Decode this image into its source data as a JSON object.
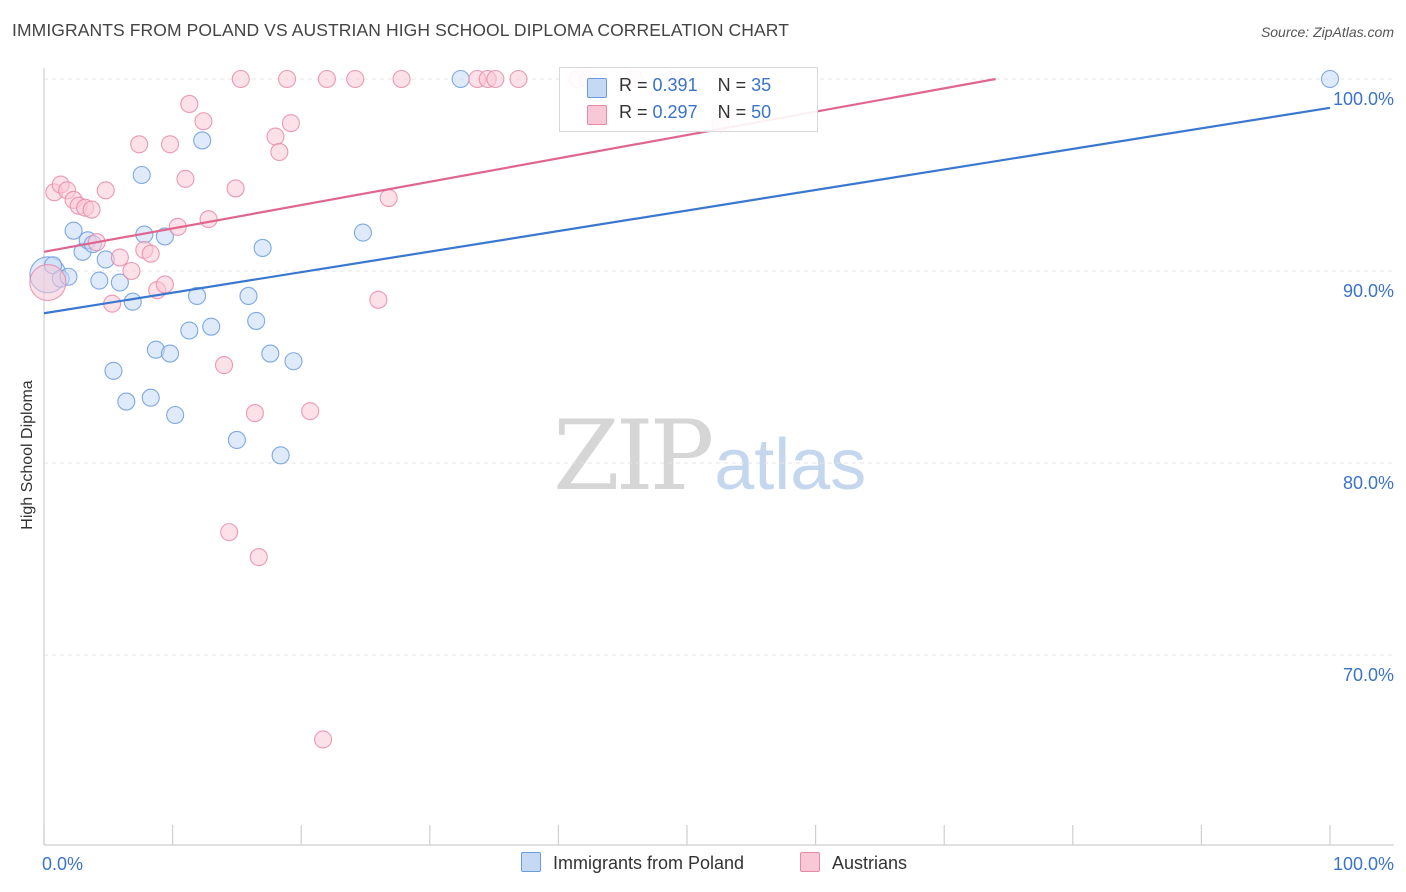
{
  "header": {
    "title": "IMMIGRANTS FROM POLAND VS AUSTRIAN HIGH SCHOOL DIPLOMA CORRELATION CHART",
    "source": "Source: ZipAtlas.com"
  },
  "watermark": {
    "zip": "ZIP",
    "atlas": "atlas"
  },
  "legend": {
    "r_label": "R =",
    "n_label": "N =",
    "rows": [
      {
        "r": "0.391",
        "n": "35"
      },
      {
        "r": "0.297",
        "n": "50"
      }
    ]
  },
  "colors": {
    "poland_fill": "#c5d9f5",
    "poland_stroke": "#6a9be0",
    "poland_line": "#3a78cf",
    "austrian_fill": "#f9c8d6",
    "austrian_stroke": "#e889a8",
    "austrian_line": "#e0668f",
    "tick_label": "#3a73c8",
    "grid": "#e4e4e4"
  },
  "chart_data": {
    "type": "scatter",
    "title": "IMMIGRANTS FROM POLAND VS AUSTRIAN HIGH SCHOOL DIPLOMA CORRELATION CHART",
    "xlabel": "",
    "ylabel": "High School Diploma",
    "xlim": [
      0,
      100
    ],
    "ylim": [
      60.5,
      100.5
    ],
    "x_tick_labels": [
      "0.0%",
      "100.0%"
    ],
    "y_ticks": [
      70,
      80,
      90,
      100
    ],
    "y_tick_labels": [
      "70.0%",
      "80.0%",
      "90.0%",
      "100.0%"
    ],
    "grid": true,
    "legend_position": "bottom",
    "series": [
      {
        "name": "Immigrants from Poland",
        "r": 0.391,
        "n": 35,
        "trend": {
          "x": [
            0,
            100
          ],
          "y": [
            87.8,
            98.5
          ]
        },
        "points": [
          {
            "x": 0.3,
            "y": 89.8,
            "s": "l"
          },
          {
            "x": 0.7,
            "y": 90.3
          },
          {
            "x": 1.3,
            "y": 89.6
          },
          {
            "x": 1.9,
            "y": 89.7
          },
          {
            "x": 2.3,
            "y": 92.1
          },
          {
            "x": 3.0,
            "y": 91.0
          },
          {
            "x": 3.4,
            "y": 91.6
          },
          {
            "x": 3.8,
            "y": 91.4
          },
          {
            "x": 4.3,
            "y": 89.5
          },
          {
            "x": 4.8,
            "y": 90.6
          },
          {
            "x": 5.4,
            "y": 84.8
          },
          {
            "x": 5.9,
            "y": 89.4
          },
          {
            "x": 6.4,
            "y": 83.2
          },
          {
            "x": 6.9,
            "y": 88.4
          },
          {
            "x": 7.6,
            "y": 95.0
          },
          {
            "x": 7.8,
            "y": 91.9
          },
          {
            "x": 8.3,
            "y": 83.4
          },
          {
            "x": 8.7,
            "y": 85.9
          },
          {
            "x": 9.4,
            "y": 91.8
          },
          {
            "x": 9.8,
            "y": 85.7
          },
          {
            "x": 10.2,
            "y": 82.5
          },
          {
            "x": 11.3,
            "y": 86.9
          },
          {
            "x": 11.9,
            "y": 88.7
          },
          {
            "x": 12.3,
            "y": 96.8
          },
          {
            "x": 13.0,
            "y": 87.1
          },
          {
            "x": 15.0,
            "y": 81.2
          },
          {
            "x": 15.9,
            "y": 88.7
          },
          {
            "x": 16.5,
            "y": 87.4
          },
          {
            "x": 17.0,
            "y": 91.2
          },
          {
            "x": 17.6,
            "y": 85.7
          },
          {
            "x": 18.4,
            "y": 80.4
          },
          {
            "x": 19.4,
            "y": 85.3
          },
          {
            "x": 24.8,
            "y": 92.0
          },
          {
            "x": 32.4,
            "y": 100.0
          },
          {
            "x": 100.0,
            "y": 100.0
          }
        ]
      },
      {
        "name": "Austrians",
        "r": 0.297,
        "n": 50,
        "trend": {
          "x": [
            0,
            74
          ],
          "y": [
            91.0,
            100.0
          ]
        },
        "points": [
          {
            "x": 0.3,
            "y": 89.4,
            "s": "l"
          },
          {
            "x": 0.8,
            "y": 94.1
          },
          {
            "x": 1.3,
            "y": 94.5
          },
          {
            "x": 1.8,
            "y": 94.2
          },
          {
            "x": 2.3,
            "y": 93.7
          },
          {
            "x": 2.7,
            "y": 93.4
          },
          {
            "x": 3.2,
            "y": 93.3
          },
          {
            "x": 3.7,
            "y": 93.2
          },
          {
            "x": 4.1,
            "y": 91.5
          },
          {
            "x": 4.8,
            "y": 94.2
          },
          {
            "x": 5.3,
            "y": 88.3
          },
          {
            "x": 5.9,
            "y": 90.7
          },
          {
            "x": 6.8,
            "y": 90.0
          },
          {
            "x": 7.4,
            "y": 96.6
          },
          {
            "x": 7.8,
            "y": 91.1
          },
          {
            "x": 8.3,
            "y": 90.9
          },
          {
            "x": 8.8,
            "y": 89.0
          },
          {
            "x": 9.4,
            "y": 89.3
          },
          {
            "x": 9.8,
            "y": 96.6
          },
          {
            "x": 10.4,
            "y": 92.3
          },
          {
            "x": 11.0,
            "y": 94.8
          },
          {
            "x": 11.3,
            "y": 98.7
          },
          {
            "x": 12.4,
            "y": 97.8
          },
          {
            "x": 12.8,
            "y": 92.7
          },
          {
            "x": 14.0,
            "y": 85.1
          },
          {
            "x": 14.9,
            "y": 94.3
          },
          {
            "x": 14.4,
            "y": 76.4
          },
          {
            "x": 15.3,
            "y": 100.0
          },
          {
            "x": 16.4,
            "y": 82.6
          },
          {
            "x": 16.7,
            "y": 75.1
          },
          {
            "x": 18.0,
            "y": 97.0
          },
          {
            "x": 18.3,
            "y": 96.2
          },
          {
            "x": 18.9,
            "y": 100.0
          },
          {
            "x": 19.2,
            "y": 97.7
          },
          {
            "x": 20.7,
            "y": 82.7
          },
          {
            "x": 21.7,
            "y": 65.6
          },
          {
            "x": 22.0,
            "y": 100.0
          },
          {
            "x": 24.2,
            "y": 100.0
          },
          {
            "x": 26.0,
            "y": 88.5
          },
          {
            "x": 26.8,
            "y": 93.8
          },
          {
            "x": 27.8,
            "y": 100.0
          },
          {
            "x": 33.7,
            "y": 100.0
          },
          {
            "x": 34.5,
            "y": 100.0
          },
          {
            "x": 35.1,
            "y": 100.0
          },
          {
            "x": 36.9,
            "y": 100.0
          },
          {
            "x": 41.5,
            "y": 100.0
          },
          {
            "x": 42.3,
            "y": 100.0
          },
          {
            "x": 45.9,
            "y": 100.0
          },
          {
            "x": 49.0,
            "y": 100.0
          },
          {
            "x": 52.6,
            "y": 97.7
          }
        ]
      }
    ]
  }
}
